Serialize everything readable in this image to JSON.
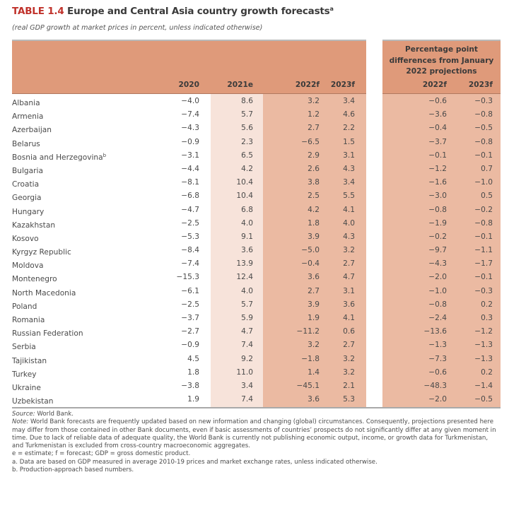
{
  "title": {
    "label": "TABLE 1.4",
    "text": "Europe and Central Asia country growth forecasts",
    "footnote_mark": "a",
    "subtitle": "(real GDP growth at market prices in percent, unless indicated otherwise)"
  },
  "header": {
    "group_label": [
      "Percentage point",
      "differences from January",
      "2022 projections"
    ],
    "columns": [
      "2020",
      "2021e",
      "2022f",
      "2023f"
    ],
    "diff_columns": [
      "2022f",
      "2023f"
    ]
  },
  "rows": [
    {
      "country": "Albania",
      "mark": "",
      "v": [
        "−4.0",
        "8.6",
        "3.2",
        "3.4"
      ],
      "d": [
        "−0.6",
        "−0.3"
      ]
    },
    {
      "country": "Armenia",
      "mark": "",
      "v": [
        "−7.4",
        "5.7",
        "1.2",
        "4.6"
      ],
      "d": [
        "−3.6",
        "−0.8"
      ]
    },
    {
      "country": "Azerbaijan",
      "mark": "",
      "v": [
        "−4.3",
        "5.6",
        "2.7",
        "2.2"
      ],
      "d": [
        "−0.4",
        "−0.5"
      ]
    },
    {
      "country": "Belarus",
      "mark": "",
      "v": [
        "−0.9",
        "2.3",
        "−6.5",
        "1.5"
      ],
      "d": [
        "−3.7",
        "−0.8"
      ]
    },
    {
      "country": "Bosnia and Herzegovina",
      "mark": "b",
      "v": [
        "−3.1",
        "6.5",
        "2.9",
        "3.1"
      ],
      "d": [
        "−0.1",
        "−0.1"
      ]
    },
    {
      "country": "Bulgaria",
      "mark": "",
      "v": [
        "−4.4",
        "4.2",
        "2.6",
        "4.3"
      ],
      "d": [
        "−1.2",
        "0.7"
      ]
    },
    {
      "country": "Croatia",
      "mark": "",
      "v": [
        "−8.1",
        "10.4",
        "3.8",
        "3.4"
      ],
      "d": [
        "−1.6",
        "−1.0"
      ]
    },
    {
      "country": "Georgia",
      "mark": "",
      "v": [
        "−6.8",
        "10.4",
        "2.5",
        "5.5"
      ],
      "d": [
        "−3.0",
        "0.5"
      ]
    },
    {
      "country": "Hungary",
      "mark": "",
      "v": [
        "−4.7",
        "6.8",
        "4.2",
        "4.1"
      ],
      "d": [
        "−0.8",
        "−0.2"
      ]
    },
    {
      "country": "Kazakhstan",
      "mark": "",
      "v": [
        "−2.5",
        "4.0",
        "1.8",
        "4.0"
      ],
      "d": [
        "−1.9",
        "−0.8"
      ]
    },
    {
      "country": "Kosovo",
      "mark": "",
      "v": [
        "−5.3",
        "9.1",
        "3.9",
        "4.3"
      ],
      "d": [
        "−0.2",
        "−0.1"
      ]
    },
    {
      "country": "Kyrgyz Republic",
      "mark": "",
      "v": [
        "−8.4",
        "3.6",
        "−5.0",
        "3.2"
      ],
      "d": [
        "−9.7",
        "−1.1"
      ]
    },
    {
      "country": "Moldova",
      "mark": "",
      "v": [
        "−7.4",
        "13.9",
        "−0.4",
        "2.7"
      ],
      "d": [
        "−4.3",
        "−1.7"
      ]
    },
    {
      "country": "Montenegro",
      "mark": "",
      "v": [
        "−15.3",
        "12.4",
        "3.6",
        "4.7"
      ],
      "d": [
        "−2.0",
        "−0.1"
      ]
    },
    {
      "country": "North Macedonia",
      "mark": "",
      "v": [
        "−6.1",
        "4.0",
        "2.7",
        "3.1"
      ],
      "d": [
        "−1.0",
        "−0.3"
      ]
    },
    {
      "country": "Poland",
      "mark": "",
      "v": [
        "−2.5",
        "5.7",
        "3.9",
        "3.6"
      ],
      "d": [
        "−0.8",
        "0.2"
      ]
    },
    {
      "country": "Romania",
      "mark": "",
      "v": [
        "−3.7",
        "5.9",
        "1.9",
        "4.1"
      ],
      "d": [
        "−2.4",
        "0.3"
      ]
    },
    {
      "country": "Russian Federation",
      "mark": "",
      "v": [
        "−2.7",
        "4.7",
        "−11.2",
        "0.6"
      ],
      "d": [
        "−13.6",
        "−1.2"
      ]
    },
    {
      "country": "Serbia",
      "mark": "",
      "v": [
        "−0.9",
        "7.4",
        "3.2",
        "2.7"
      ],
      "d": [
        "−1.3",
        "−1.3"
      ]
    },
    {
      "country": "Tajikistan",
      "mark": "",
      "v": [
        "4.5",
        "9.2",
        "−1.8",
        "3.2"
      ],
      "d": [
        "−7.3",
        "−1.3"
      ]
    },
    {
      "country": "Turkey",
      "mark": "",
      "v": [
        "1.8",
        "11.0",
        "1.4",
        "3.2"
      ],
      "d": [
        "−0.6",
        "0.2"
      ]
    },
    {
      "country": "Ukraine",
      "mark": "",
      "v": [
        "−3.8",
        "3.4",
        "−45.1",
        "2.1"
      ],
      "d": [
        "−48.3",
        "−1.4"
      ]
    },
    {
      "country": "Uzbekistan",
      "mark": "",
      "v": [
        "1.9",
        "7.4",
        "3.6",
        "5.3"
      ],
      "d": [
        "−2.0",
        "−0.5"
      ]
    }
  ],
  "notes": {
    "source_label": "Source:",
    "source_text": " World Bank.",
    "note_label": "Note:",
    "note_text": " World Bank forecasts are frequently updated based on new information and changing (global) circumstances. Consequently, projections presented here may differ from those contained in other Bank documents, even if basic assessments of countries’ prospects do not significantly differ at any given moment in time. Due to lack of reliable data of adequate quality, the World Bank is currently not publishing economic output, income, or growth data for Turkmenistan, and Turkmenistan is excluded from cross-country macroeconomic aggregates.",
    "abbrev": "e = estimate; f = forecast; GDP = gross domestic product.",
    "footnote_a": "a. Data are based on GDP measured in average 2010-19 prices and market exchange rates, unless indicated otherwise.",
    "footnote_b": "b. Production-approach based numbers."
  },
  "colors": {
    "header_fill": "#df9a7a",
    "forecast_fill": "#ebbaa2",
    "estimate_fill": "#f7e3da",
    "title_accent": "#c0322b"
  }
}
